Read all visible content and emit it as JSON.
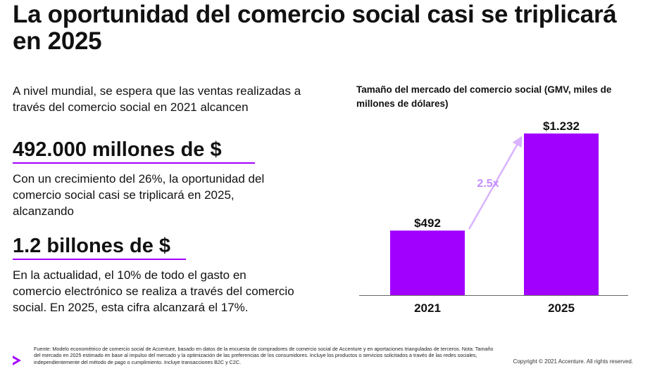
{
  "slide": {
    "title": "La oportunidad del comercio social casi se triplicará en 2025"
  },
  "left": {
    "intro": "A nivel mundial, se espera que las ventas realizadas a través del comercio social en 2021 alcancen",
    "stat1": "492.000 millones de $",
    "growth_text": "Con un crecimiento del 26%, la oportunidad del comercio social casi se triplicará en 2025, alcanzando",
    "stat2": "1.2 billones de $",
    "share_text": "En la actualidad, el 10% de todo el gasto en comercio electrónico se realiza a través del comercio social. En 2025, esta cifra alcanzará el 17%."
  },
  "colors": {
    "accent": "#a100ff",
    "arrow": "#d9b3ff",
    "multiplier_text": "#c48cff"
  },
  "chart_data": {
    "type": "bar",
    "title": "Tamaño del mercado del comercio social (GMV, miles de millones de dólares)",
    "categories": [
      "2021",
      "2025"
    ],
    "values": [
      492,
      1232
    ],
    "data_labels": [
      "$492",
      "$1.232"
    ],
    "annotation": "2.5x",
    "ylim": [
      0,
      1232
    ],
    "grid": false,
    "axis_line": "bottom"
  },
  "footer": {
    "source": "Fuente: Modelo econométrico de comercio social de Accenture, basado en datos de la encuesta de compradores de comercio social de Accenture y en aportaciones trianguladas de terceros. Nota: Tamaño del mercado en 2025 estimado en base al impulso del mercado y la optimización de las preferencias de los consumidores. Incluye los productos o servicios solicitados a través de las redes sociales, independientemente del método de pago o cumplimiento. Incluye transacciones B2C y C2C.",
    "copyright": "Copyright © 2021 Accenture. All rights reserved."
  }
}
